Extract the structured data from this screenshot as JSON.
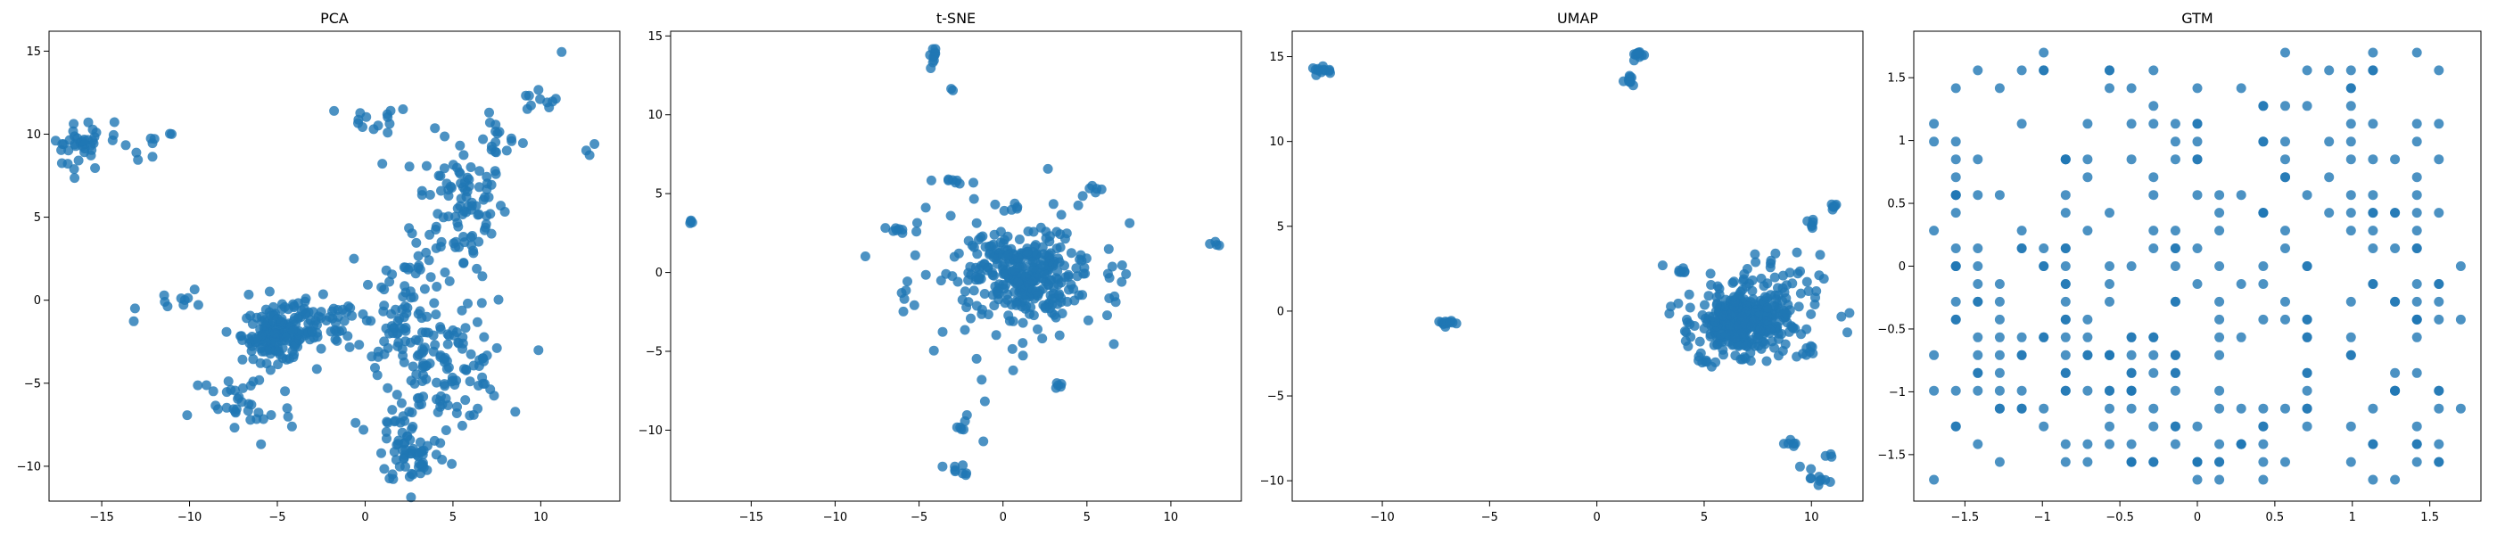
{
  "chart_data": [
    {
      "type": "scatter",
      "title": "PCA",
      "xlim": [
        -18,
        14.5
      ],
      "ylim": [
        -12.1,
        16.2
      ],
      "xticks": [
        -15,
        -10,
        -5,
        0,
        5,
        10
      ],
      "yticks": [
        -10,
        -5,
        0,
        5,
        10,
        15
      ],
      "color": "#1f77b4",
      "clusters": [
        {
          "x": -16.3,
          "y": 9.2,
          "sx": 0.8,
          "sy": 0.7,
          "n": 30
        },
        {
          "x": -14.8,
          "y": 9.8,
          "sx": 0.8,
          "sy": 0.6,
          "n": 10
        },
        {
          "x": -12,
          "y": 9.0,
          "sx": 0.6,
          "sy": 0.7,
          "n": 8
        },
        {
          "x": 0.5,
          "y": 10.9,
          "sx": 1.1,
          "sy": 0.4,
          "n": 14
        },
        {
          "x": 9.8,
          "y": 12.0,
          "sx": 0.6,
          "sy": 0.4,
          "n": 10
        },
        {
          "x": 7.5,
          "y": 9.8,
          "sx": 0.7,
          "sy": 0.6,
          "n": 14
        },
        {
          "x": 5.5,
          "y": 5.8,
          "sx": 1.3,
          "sy": 2.1,
          "n": 95
        },
        {
          "x": 2.6,
          "y": 0.5,
          "sx": 1.8,
          "sy": 1.7,
          "n": 55
        },
        {
          "x": -5.0,
          "y": -2.1,
          "sx": 1.0,
          "sy": 0.8,
          "n": 150
        },
        {
          "x": -2.8,
          "y": -1.6,
          "sx": 1.3,
          "sy": 0.8,
          "n": 55
        },
        {
          "x": -10,
          "y": 0.0,
          "sx": 1.4,
          "sy": 0.5,
          "n": 12
        },
        {
          "x": 4.5,
          "y": -4.2,
          "sx": 1.7,
          "sy": 1.5,
          "n": 110
        },
        {
          "x": 1.5,
          "y": -2.2,
          "sx": 1.2,
          "sy": 1.0,
          "n": 30
        },
        {
          "x": -7,
          "y": -6.5,
          "sx": 1.5,
          "sy": 1.2,
          "n": 35
        },
        {
          "x": 2.8,
          "y": -9.3,
          "sx": 1.0,
          "sy": 0.9,
          "n": 55
        },
        {
          "x": 1.2,
          "y": -7.5,
          "sx": 0.6,
          "sy": 0.5,
          "n": 10
        },
        {
          "x": 12.7,
          "y": 9.4,
          "sx": 0.3,
          "sy": 0.6,
          "n": 3
        },
        {
          "x": 11.1,
          "y": 14.9,
          "sx": 0.1,
          "sy": 0.1,
          "n": 1
        }
      ]
    },
    {
      "type": "scatter",
      "title": "t-SNE",
      "xlim": [
        -19.8,
        14.2
      ],
      "ylim": [
        -14.5,
        15.3
      ],
      "xticks": [
        -15,
        -10,
        -5,
        0,
        5,
        10
      ],
      "yticks": [
        -10,
        -5,
        0,
        5,
        10,
        15
      ],
      "color": "#1f77b4",
      "clusters": [
        {
          "x": 1.3,
          "y": -0.2,
          "sx": 1.5,
          "sy": 1.3,
          "n": 240
        },
        {
          "x": 0.2,
          "y": 0.0,
          "sx": 2.8,
          "sy": 2.6,
          "n": 110
        },
        {
          "x": -4.1,
          "y": 13.8,
          "sx": 0.15,
          "sy": 0.3,
          "n": 10
        },
        {
          "x": -3.1,
          "y": 11.7,
          "sx": 0.1,
          "sy": 0.1,
          "n": 2
        },
        {
          "x": -2.7,
          "y": 5.7,
          "sx": 0.4,
          "sy": 0.1,
          "n": 6
        },
        {
          "x": 5.6,
          "y": 5.2,
          "sx": 0.3,
          "sy": 0.2,
          "n": 6
        },
        {
          "x": -18.5,
          "y": 3.2,
          "sx": 0.1,
          "sy": 0.1,
          "n": 4
        },
        {
          "x": 12.7,
          "y": 1.8,
          "sx": 0.1,
          "sy": 0.1,
          "n": 4
        },
        {
          "x": -6.2,
          "y": 2.7,
          "sx": 0.4,
          "sy": 0.1,
          "n": 8
        },
        {
          "x": -2.9,
          "y": -12.6,
          "sx": 0.4,
          "sy": 0.3,
          "n": 8
        },
        {
          "x": -2.3,
          "y": -9.3,
          "sx": 0.2,
          "sy": 0.3,
          "n": 6
        },
        {
          "x": 6.5,
          "y": -0.5,
          "sx": 0.5,
          "sy": 0.9,
          "n": 10
        },
        {
          "x": 3.3,
          "y": -7.3,
          "sx": 0.15,
          "sy": 0.15,
          "n": 5
        },
        {
          "x": -5.6,
          "y": -1.5,
          "sx": 0.4,
          "sy": 0.6,
          "n": 5
        },
        {
          "x": -1.2,
          "y": -10.6,
          "sx": 0.1,
          "sy": 0.1,
          "n": 1
        },
        {
          "x": 2.8,
          "y": 6.6,
          "sx": 0.1,
          "sy": 0.1,
          "n": 1
        },
        {
          "x": 6.6,
          "y": -4.6,
          "sx": 0.1,
          "sy": 0.1,
          "n": 1
        }
      ]
    },
    {
      "type": "scatter",
      "title": "UMAP",
      "xlim": [
        -14.2,
        12.4
      ],
      "ylim": [
        -11.2,
        16.5
      ],
      "xticks": [
        -10,
        -5,
        0,
        5,
        10
      ],
      "yticks": [
        -10,
        -5,
        0,
        5,
        10,
        15
      ],
      "color": "#1f77b4",
      "clusters": [
        {
          "x": -12.7,
          "y": 14.2,
          "sx": 0.3,
          "sy": 0.1,
          "n": 12
        },
        {
          "x": 1.9,
          "y": 15.1,
          "sx": 0.15,
          "sy": 0.15,
          "n": 10
        },
        {
          "x": 1.6,
          "y": 13.6,
          "sx": 0.15,
          "sy": 0.2,
          "n": 10
        },
        {
          "x": -7.1,
          "y": -0.7,
          "sx": 0.2,
          "sy": 0.1,
          "n": 12
        },
        {
          "x": 6.8,
          "y": -0.7,
          "sx": 1.0,
          "sy": 0.9,
          "n": 320
        },
        {
          "x": 7.2,
          "y": 0.3,
          "sx": 1.6,
          "sy": 1.5,
          "n": 90
        },
        {
          "x": 4.0,
          "y": 2.4,
          "sx": 0.15,
          "sy": 0.1,
          "n": 6
        },
        {
          "x": 4.9,
          "y": -3.0,
          "sx": 0.3,
          "sy": 0.2,
          "n": 8
        },
        {
          "x": 9.8,
          "y": -2.4,
          "sx": 0.3,
          "sy": 0.2,
          "n": 8
        },
        {
          "x": 10.0,
          "y": 5.2,
          "sx": 0.1,
          "sy": 0.3,
          "n": 6
        },
        {
          "x": 11.1,
          "y": 6.2,
          "sx": 0.2,
          "sy": 0.1,
          "n": 6
        },
        {
          "x": 9.2,
          "y": -7.8,
          "sx": 0.2,
          "sy": 0.1,
          "n": 6
        },
        {
          "x": 10.2,
          "y": -9.9,
          "sx": 0.3,
          "sy": 0.4,
          "n": 10
        },
        {
          "x": 10.8,
          "y": -8.4,
          "sx": 0.1,
          "sy": 0.1,
          "n": 3
        }
      ]
    },
    {
      "type": "scatter",
      "title": "GTM",
      "xlim": [
        -1.83,
        1.83
      ],
      "ylim": [
        -1.87,
        1.87
      ],
      "xticks": [
        -1.5,
        -1.0,
        -0.5,
        0.0,
        0.5,
        1.0,
        1.5
      ],
      "yticks": [
        -1.5,
        -1.0,
        -0.5,
        0.0,
        0.5,
        1.0,
        1.5
      ],
      "color": "#1f77b4",
      "grid_min": -1.7,
      "grid_max": 1.7,
      "grid_steps": 24,
      "grid_n": 330
    }
  ]
}
